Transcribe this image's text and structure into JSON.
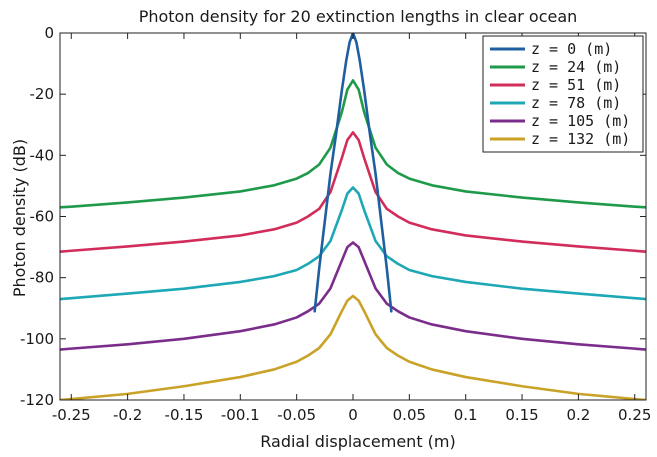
{
  "chart_data": {
    "type": "line",
    "title": "Photon density for 20 extinction lengths in clear ocean",
    "xlabel": "Radial displacement (m)",
    "ylabel": "Photon density (dB)",
    "xlim": [
      -0.26,
      0.26
    ],
    "ylim": [
      -120,
      0
    ],
    "xticks": [
      -0.25,
      -0.2,
      -0.15,
      -0.1,
      -0.05,
      0,
      0.05,
      0.1,
      0.15,
      0.2,
      0.25
    ],
    "xtick_labels": [
      "-0.25",
      "-0.2",
      "-0.15",
      "-00.1",
      "-0.05",
      "0",
      "0.05",
      "0.1",
      "0.15",
      "0.2",
      "0.25"
    ],
    "yticks": [
      0,
      -20,
      -40,
      -60,
      -80,
      -100,
      -120
    ],
    "ytick_labels": [
      "0",
      "-20",
      "-40",
      "-60",
      "-80",
      "-100",
      "-120"
    ],
    "grid": false,
    "legend_position": "top-right",
    "series": [
      {
        "name": "z = 0 (m)",
        "color": "#1f5fa0",
        "x": [
          -0.034,
          -0.03,
          -0.02,
          -0.015,
          -0.01,
          -0.006,
          -0.003,
          0,
          0.003,
          0.006,
          0.01,
          0.015,
          0.02,
          0.03,
          0.034
        ],
        "y": [
          -91,
          -77,
          -46,
          -33,
          -19,
          -9,
          -3,
          0,
          -3,
          -9,
          -19,
          -33,
          -46,
          -77,
          -91
        ]
      },
      {
        "name": "z = 24 (m)",
        "color": "#1f9a4a",
        "x": [
          -0.26,
          -0.25,
          -0.2,
          -0.15,
          -0.1,
          -0.07,
          -0.05,
          -0.04,
          -0.03,
          -0.02,
          -0.01,
          -0.005,
          0,
          0.005,
          0.01,
          0.02,
          0.03,
          0.04,
          0.05,
          0.07,
          0.1,
          0.15,
          0.2,
          0.25,
          0.26
        ],
        "y": [
          -57,
          -56.8,
          -55.4,
          -53.8,
          -51.8,
          -49.8,
          -47.6,
          -45.8,
          -43,
          -37.5,
          -26,
          -18.5,
          -15.5,
          -18.5,
          -26,
          -37.5,
          -43,
          -45.8,
          -47.6,
          -49.8,
          -51.8,
          -53.8,
          -55.4,
          -56.8,
          -57
        ]
      },
      {
        "name": "z = 51 (m)",
        "color": "#d22d5a",
        "x": [
          -0.26,
          -0.25,
          -0.2,
          -0.15,
          -0.1,
          -0.07,
          -0.05,
          -0.04,
          -0.03,
          -0.02,
          -0.01,
          -0.005,
          0,
          0.005,
          0.01,
          0.02,
          0.03,
          0.04,
          0.05,
          0.07,
          0.1,
          0.15,
          0.2,
          0.25,
          0.26
        ],
        "y": [
          -71.5,
          -71.2,
          -69.8,
          -68.2,
          -66.2,
          -64.2,
          -62,
          -60,
          -57.5,
          -52,
          -41,
          -35,
          -32.5,
          -35,
          -41,
          -52,
          -57.5,
          -60,
          -62,
          -64.2,
          -66.2,
          -68.2,
          -69.8,
          -71.2,
          -71.5
        ]
      },
      {
        "name": "z = 78 (m)",
        "color": "#1ea8b5",
        "x": [
          -0.26,
          -0.25,
          -0.2,
          -0.15,
          -0.1,
          -0.07,
          -0.05,
          -0.04,
          -0.03,
          -0.02,
          -0.01,
          -0.005,
          0,
          0.005,
          0.01,
          0.02,
          0.03,
          0.04,
          0.05,
          0.07,
          0.1,
          0.15,
          0.2,
          0.25,
          0.26
        ],
        "y": [
          -87,
          -86.7,
          -85.2,
          -83.6,
          -81.4,
          -79.5,
          -77.5,
          -75.5,
          -73,
          -68,
          -58,
          -52.5,
          -50.5,
          -52.5,
          -58,
          -68,
          -73,
          -75.5,
          -77.5,
          -79.5,
          -81.4,
          -83.6,
          -85.2,
          -86.7,
          -87
        ]
      },
      {
        "name": "z = 105 (m)",
        "color": "#7b2d8b",
        "x": [
          -0.26,
          -0.25,
          -0.2,
          -0.15,
          -0.1,
          -0.07,
          -0.05,
          -0.04,
          -0.03,
          -0.02,
          -0.01,
          -0.005,
          0,
          0.005,
          0.01,
          0.02,
          0.03,
          0.04,
          0.05,
          0.07,
          0.1,
          0.15,
          0.2,
          0.25,
          0.26
        ],
        "y": [
          -103.5,
          -103.2,
          -101.8,
          -100,
          -97.5,
          -95.3,
          -93,
          -91,
          -88.5,
          -83.5,
          -74.5,
          -70,
          -68.5,
          -70,
          -74.5,
          -83.5,
          -88.5,
          -91,
          -93,
          -95.3,
          -97.5,
          -100,
          -101.8,
          -103.2,
          -103.5
        ]
      },
      {
        "name": "z = 132 (m)",
        "color": "#c9a227",
        "x": [
          -0.26,
          -0.25,
          -0.2,
          -0.15,
          -0.1,
          -0.07,
          -0.05,
          -0.04,
          -0.03,
          -0.02,
          -0.01,
          -0.005,
          0,
          0.005,
          0.01,
          0.02,
          0.03,
          0.04,
          0.05,
          0.07,
          0.1,
          0.15,
          0.2,
          0.25,
          0.26
        ],
        "y": [
          -120,
          -119.7,
          -118,
          -115.5,
          -112.5,
          -110,
          -107.5,
          -105.5,
          -103,
          -98.5,
          -91,
          -87.5,
          -86,
          -87.5,
          -91,
          -98.5,
          -103,
          -105.5,
          -107.5,
          -110,
          -112.5,
          -115.5,
          -118,
          -119.7,
          -120
        ]
      }
    ]
  }
}
